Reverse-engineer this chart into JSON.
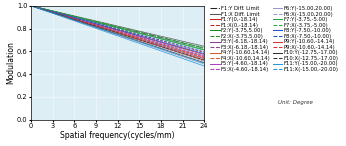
{
  "title": "",
  "xlabel": "Spatial frequency(cycles/mm)",
  "ylabel": "Modulation",
  "xlim": [
    0,
    24
  ],
  "ylim": [
    0,
    1.0
  ],
  "xticks": [
    0,
    3,
    6,
    9,
    12,
    15,
    18,
    21,
    24
  ],
  "yticks": [
    0,
    0.2,
    0.4,
    0.6,
    0.8,
    1.0
  ],
  "background_color": "#ddeef5",
  "unit_note": "Unit: Degree",
  "series": [
    {
      "label": "F1:Y Diff. Limit",
      "color": "#222222",
      "ls": "-.",
      "slope": -0.0155
    },
    {
      "label": "F1:X Diff. Limit",
      "color": "#555555",
      "ls": "-",
      "slope": -0.0148
    },
    {
      "label": "F1:Y(0,-18.14)",
      "color": "#cc2222",
      "ls": "-",
      "slope": -0.0178
    },
    {
      "label": "F1:X(0,-18.14)",
      "color": "#cc2222",
      "ls": "--",
      "slope": -0.017
    },
    {
      "label": "F2:Y(-3.75,5.00)",
      "color": "#228822",
      "ls": "-",
      "slope": -0.016
    },
    {
      "label": "F2:X(-3.75,5.00)",
      "color": "#228822",
      "ls": "--",
      "slope": -0.0153
    },
    {
      "label": "F3:Y(-6.18,-18.14)",
      "color": "#884488",
      "ls": "-",
      "slope": -0.0193
    },
    {
      "label": "F3:X(-6.18,-18.14)",
      "color": "#884488",
      "ls": "--",
      "slope": -0.0183
    },
    {
      "label": "F4:Y(-10.60,14.14)",
      "color": "#cc6622",
      "ls": "-",
      "slope": -0.02
    },
    {
      "label": "F4:X(-10.60,14.14)",
      "color": "#cc6622",
      "ls": "--",
      "slope": -0.019
    },
    {
      "label": "F5:Y(-4.60,-18.14)",
      "color": "#aa44bb",
      "ls": "-",
      "slope": -0.0186
    },
    {
      "label": "F5:X(-4.60,-18.14)",
      "color": "#aa44bb",
      "ls": "--",
      "slope": -0.0177
    },
    {
      "label": "F6:Y(-15.00,20.00)",
      "color": "#9999cc",
      "ls": "-",
      "slope": -0.0213
    },
    {
      "label": "F6:X(-15.00,20.00)",
      "color": "#9999cc",
      "ls": "--",
      "slope": -0.0203
    },
    {
      "label": "F7:Y(-3.75,-5.00)",
      "color": "#22aa44",
      "ls": "-",
      "slope": -0.0162
    },
    {
      "label": "F7:X(-3.75,-5.00)",
      "color": "#22aa44",
      "ls": "--",
      "slope": -0.0155
    },
    {
      "label": "F8:Y(-7.50,-10.00)",
      "color": "#2255cc",
      "ls": "-",
      "slope": -0.0175
    },
    {
      "label": "F8:X(-7.50,-10.00)",
      "color": "#2255cc",
      "ls": "--",
      "slope": -0.0168
    },
    {
      "label": "P9:Y(-10.60,-14.14)",
      "color": "#dd3333",
      "ls": "-",
      "slope": -0.0198
    },
    {
      "label": "P9:X(-10.60,-14.14)",
      "color": "#dd3333",
      "ls": "--",
      "slope": -0.0189
    },
    {
      "label": "F10:Y(-12.75,-17.00)",
      "color": "#333333",
      "ls": "-",
      "slope": -0.0208
    },
    {
      "label": "F10:X(-12.75,-17.00)",
      "color": "#333333",
      "ls": "--",
      "slope": -0.0198
    },
    {
      "label": "F11:Y(-15.00,-20.00)",
      "color": "#2299dd",
      "ls": "-",
      "slope": -0.022
    },
    {
      "label": "F11:X(-15.00,-20.00)",
      "color": "#2299dd",
      "ls": "--",
      "slope": -0.021
    }
  ],
  "legend_cols": 2,
  "legend_fontsize": 3.8,
  "axis_fontsize": 5.5,
  "tick_fontsize": 4.8,
  "lw": 0.55
}
